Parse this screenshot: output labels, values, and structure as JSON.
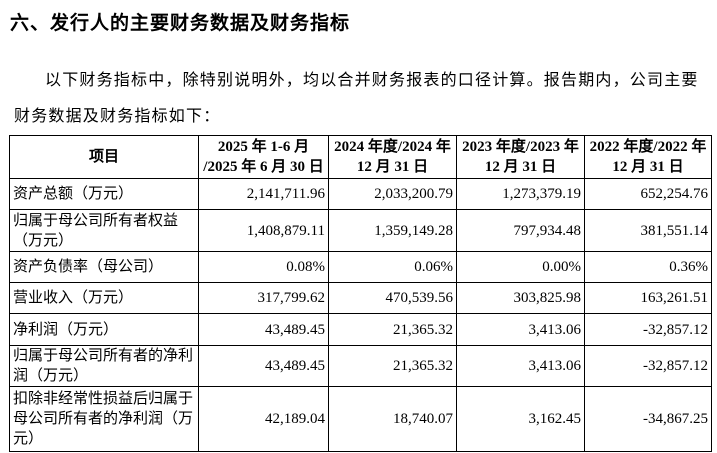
{
  "title": "六、发行人的主要财务数据及财务指标",
  "paragraph": "以下财务指标中，除特别说明外，均以合并财务报表的口径计算。报告期内，公司主要财务数据及财务指标如下：",
  "table": {
    "headers": [
      "项目",
      "2025 年 1-6 月 /2025 年 6 月 30 日",
      "2024 年度/2024 年 12 月 31 日",
      "2023 年度/2023 年 12 月 31 日",
      "2022 年度/2022 年 12 月 31 日"
    ],
    "rows": [
      {
        "label": "资产总额（万元）",
        "values": [
          "2,141,711.96",
          "2,033,200.79",
          "1,273,379.19",
          "652,254.76"
        ]
      },
      {
        "label": "归属于母公司所有者权益（万元）",
        "values": [
          "1,408,879.11",
          "1,359,149.28",
          "797,934.48",
          "381,551.14"
        ]
      },
      {
        "label": "资产负债率（母公司）",
        "values": [
          "0.08%",
          "0.06%",
          "0.00%",
          "0.36%"
        ]
      },
      {
        "label": "营业收入（万元）",
        "values": [
          "317,799.62",
          "470,539.56",
          "303,825.98",
          "163,261.51"
        ]
      },
      {
        "label": "净利润（万元）",
        "values": [
          "43,489.45",
          "21,365.32",
          "3,413.06",
          "-32,857.12"
        ]
      },
      {
        "label": "归属于母公司所有者的净利润（万元）",
        "values": [
          "43,489.45",
          "21,365.32",
          "3,413.06",
          "-32,857.12"
        ]
      },
      {
        "label": "扣除非经常性损益后归属于母公司所有者的净利润（万元）",
        "values": [
          "42,189.04",
          "18,740.07",
          "3,162.45",
          "-34,867.25"
        ]
      }
    ]
  }
}
